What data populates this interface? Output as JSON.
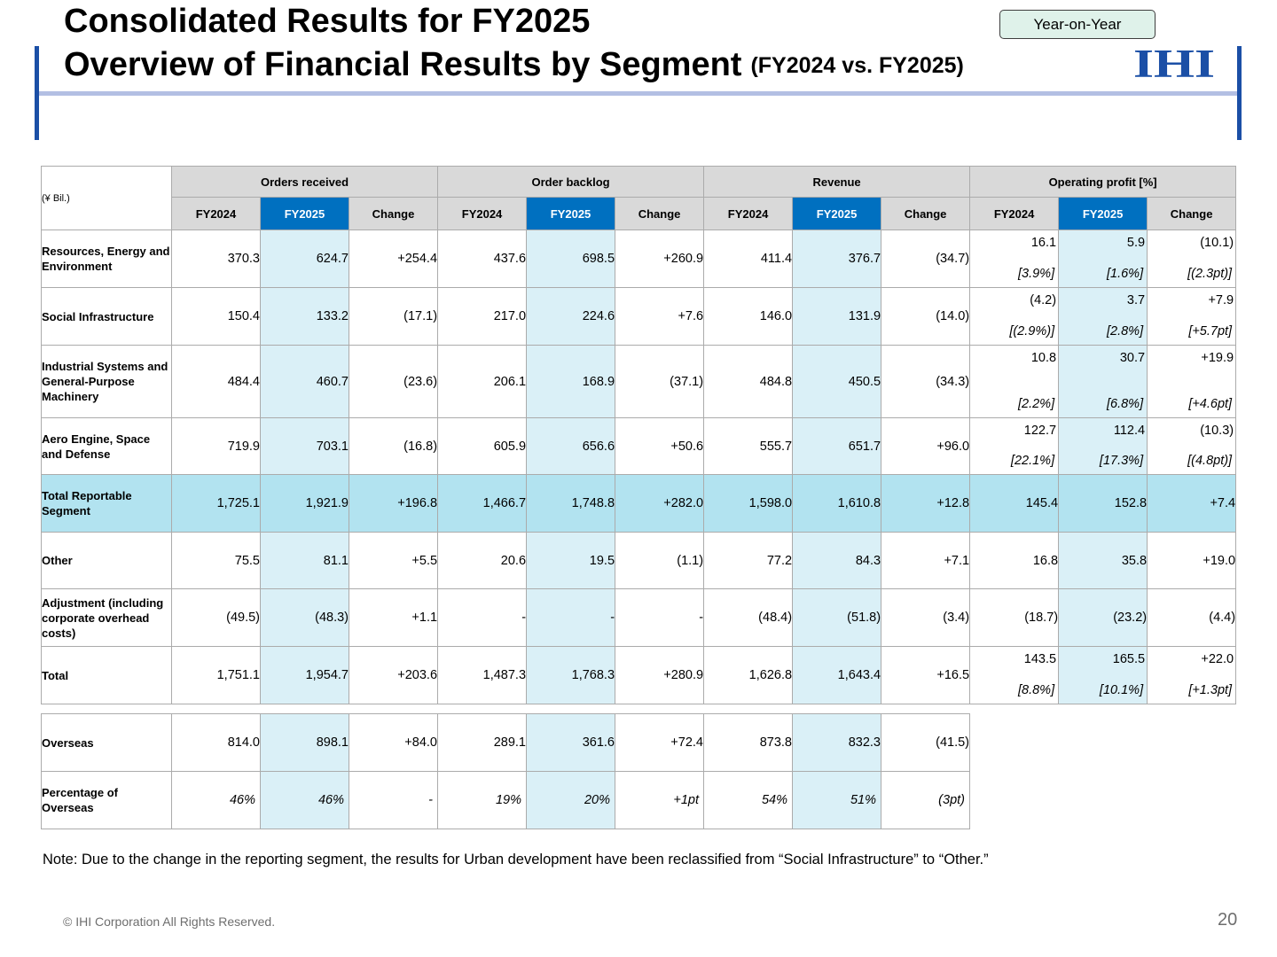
{
  "header": {
    "title_line1": "Consolidated Results for FY2025",
    "title_line2": "Overview of Financial Results by Segment",
    "title_sub": "(FY2024 vs. FY2025)",
    "badge": "Year-on-Year",
    "logo_text": "IHI"
  },
  "colors": {
    "accent_blue": "#1b4fa6",
    "fy2025_header": "#0070c0",
    "fy2025_cells": "#daf0f7",
    "total_row": "#b2e3f0",
    "header_gray": "#d9d9d9"
  },
  "table": {
    "unit": "(¥ Bil.)",
    "groups": [
      "Orders received",
      "Order backlog",
      "Revenue",
      "Operating profit [%]"
    ],
    "subheaders": [
      "FY2024",
      "FY2025",
      "Change"
    ],
    "rows": [
      {
        "label": "Resources, Energy and Environment",
        "values": [
          "370.3",
          "624.7",
          "+254.4",
          "437.6",
          "698.5",
          "+260.9",
          "411.4",
          "376.7",
          "(34.7)"
        ],
        "op": [
          "16.1",
          "5.9",
          "(10.1)"
        ],
        "op_pct": [
          "[3.9%]",
          "[1.6%]",
          "[(2.3pt)]"
        ]
      },
      {
        "label": "Social Infrastructure",
        "values": [
          "150.4",
          "133.2",
          "(17.1)",
          "217.0",
          "224.6",
          "+7.6",
          "146.0",
          "131.9",
          "(14.0)"
        ],
        "op": [
          "(4.2)",
          "3.7",
          "+7.9"
        ],
        "op_pct": [
          "[(2.9%)]",
          "[2.8%]",
          "[+5.7pt]"
        ]
      },
      {
        "label": "Industrial Systems and General-Purpose Machinery",
        "values": [
          "484.4",
          "460.7",
          "(23.6)",
          "206.1",
          "168.9",
          "(37.1)",
          "484.8",
          "450.5",
          "(34.3)"
        ],
        "op": [
          "10.8",
          "30.7",
          "+19.9"
        ],
        "op_pct": [
          "[2.2%]",
          "[6.8%]",
          "[+4.6pt]"
        ]
      },
      {
        "label": "Aero Engine, Space and Defense",
        "values": [
          "719.9",
          "703.1",
          "(16.8)",
          "605.9",
          "656.6",
          "+50.6",
          "555.7",
          "651.7",
          "+96.0"
        ],
        "op": [
          "122.7",
          "112.4",
          "(10.3)"
        ],
        "op_pct": [
          "[22.1%]",
          "[17.3%]",
          "[(4.8pt)]"
        ]
      },
      {
        "label": "Total Reportable Segment",
        "values": [
          "1,725.1",
          "1,921.9",
          "+196.8",
          "1,466.7",
          "1,748.8",
          "+282.0",
          "1,598.0",
          "1,610.8",
          "+12.8"
        ],
        "op": [
          "145.4",
          "152.8",
          "+7.4"
        ]
      },
      {
        "label": "Other",
        "values": [
          "75.5",
          "81.1",
          "+5.5",
          "20.6",
          "19.5",
          "(1.1)",
          "77.2",
          "84.3",
          "+7.1"
        ],
        "op": [
          "16.8",
          "35.8",
          "+19.0"
        ]
      },
      {
        "label": "Adjustment (including corporate overhead costs)",
        "values": [
          "(49.5)",
          "(48.3)",
          "+1.1",
          "-",
          "-",
          "-",
          "(48.4)",
          "(51.8)",
          "(3.4)"
        ],
        "op": [
          "(18.7)",
          "(23.2)",
          "(4.4)"
        ]
      },
      {
        "label": "Total",
        "values": [
          "1,751.1",
          "1,954.7",
          "+203.6",
          "1,487.3",
          "1,768.3",
          "+280.9",
          "1,626.8",
          "1,643.4",
          "+16.5"
        ],
        "op": [
          "143.5",
          "165.5",
          "+22.0"
        ],
        "op_pct": [
          "[8.8%]",
          "[10.1%]",
          "[+1.3pt]"
        ]
      }
    ]
  },
  "overseas": {
    "rows": [
      {
        "label": "Overseas",
        "values": [
          "814.0",
          "898.1",
          "+84.0",
          "289.1",
          "361.6",
          "+72.4",
          "873.8",
          "832.3",
          "(41.5)"
        ]
      },
      {
        "label": "Percentage of Overseas",
        "values": [
          "46%",
          "46%",
          "-",
          "19%",
          "20%",
          "+1pt",
          "54%",
          "51%",
          "(3pt)"
        ]
      }
    ]
  },
  "note": "Note: Due to the change in the reporting segment, the results for Urban development have been reclassified from “Social Infrastructure” to “Other.”",
  "footer": {
    "copyright": "© IHI Corporation All Rights Reserved.",
    "page_number": "20"
  }
}
